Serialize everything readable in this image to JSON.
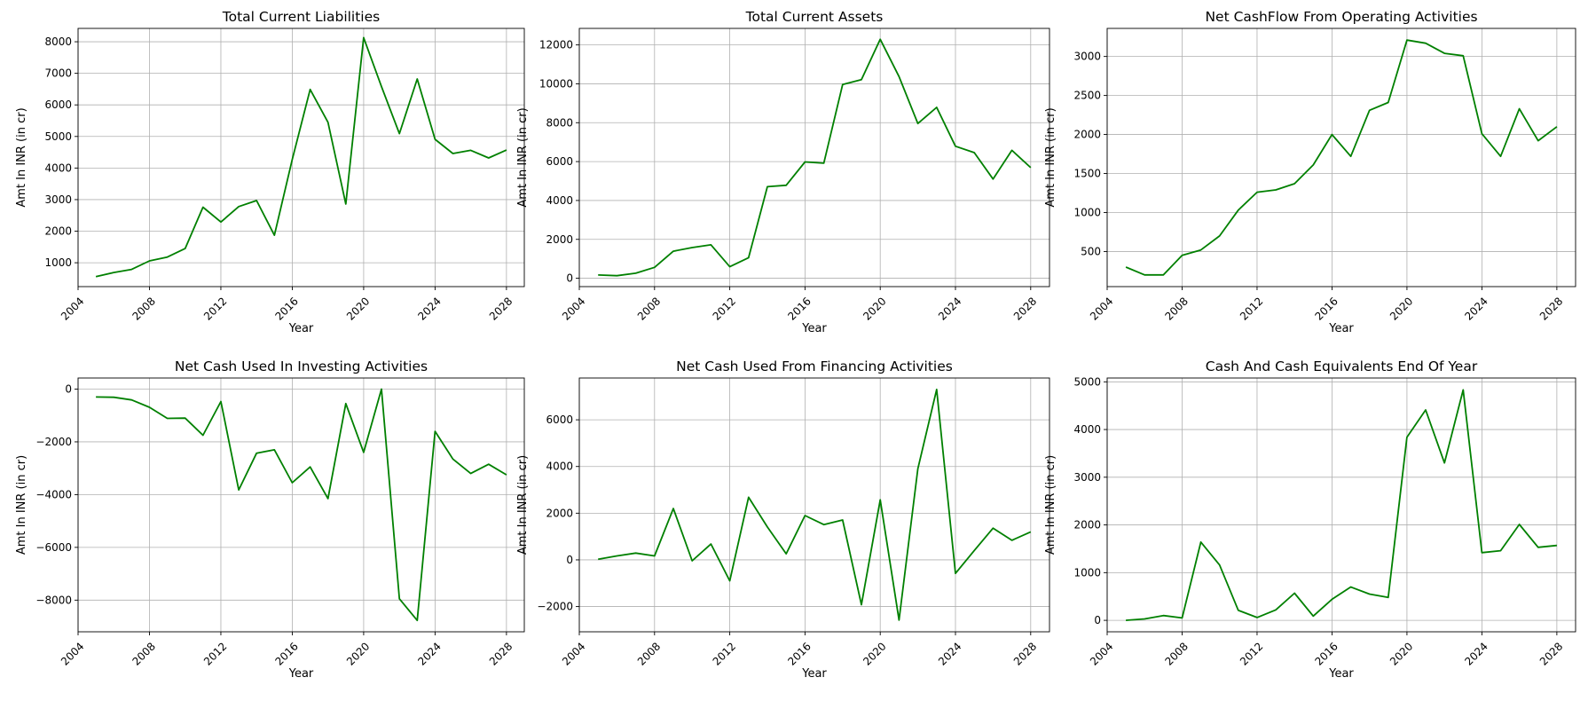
{
  "chart_data": [
    {
      "type": "line",
      "title": "Total Current Liabilities",
      "xlabel": "Year",
      "ylabel": "Amt In INR (in cr)",
      "xlim": [
        2004,
        2029
      ],
      "ylim": [
        244,
        8423
      ],
      "grid": true,
      "color": "#008000",
      "xticks": [
        2004,
        2008,
        2012,
        2016,
        2020,
        2024,
        2028
      ],
      "yticks": [
        1000,
        2000,
        3000,
        4000,
        5000,
        6000,
        7000,
        8000
      ],
      "x": [
        2005,
        2006,
        2007,
        2008,
        2009,
        2010,
        2011,
        2012,
        2013,
        2014,
        2015,
        2016,
        2017,
        2018,
        2019,
        2020,
        2021,
        2022,
        2023,
        2024,
        2025,
        2026,
        2027,
        2028
      ],
      "y": [
        560,
        690,
        790,
        1060,
        1180,
        1450,
        2760,
        2290,
        2780,
        2970,
        1870,
        4270,
        6490,
        5450,
        2860,
        8130,
        6580,
        5090,
        6820,
        4910,
        4460,
        4560,
        4320,
        4570
      ]
    },
    {
      "type": "line",
      "title": "Total Current Assets",
      "xlabel": "Year",
      "ylabel": "Amt In INR (in cr)",
      "xlim": [
        2004,
        2029
      ],
      "ylim": [
        -430,
        12850
      ],
      "grid": true,
      "color": "#008000",
      "xticks": [
        2004,
        2008,
        2012,
        2016,
        2020,
        2024,
        2028
      ],
      "yticks": [
        0,
        2000,
        4000,
        6000,
        8000,
        10000,
        12000
      ],
      "x": [
        2005,
        2006,
        2007,
        2008,
        2009,
        2010,
        2011,
        2012,
        2013,
        2014,
        2015,
        2016,
        2017,
        2018,
        2019,
        2020,
        2021,
        2022,
        2023,
        2024,
        2025,
        2026,
        2027,
        2028
      ],
      "y": [
        170,
        130,
        260,
        560,
        1390,
        1580,
        1720,
        590,
        1060,
        4710,
        4780,
        5980,
        5920,
        9960,
        10210,
        12290,
        10370,
        7960,
        8790,
        6790,
        6460,
        5100,
        6580,
        5690
      ]
    },
    {
      "type": "line",
      "title": "Net CashFlow From Operating Activities",
      "xlabel": "Year",
      "ylabel": "Amt In INR (in cr)",
      "xlim": [
        2004,
        2029
      ],
      "ylim": [
        50,
        3360
      ],
      "grid": true,
      "color": "#008000",
      "xticks": [
        2004,
        2008,
        2012,
        2016,
        2020,
        2024,
        2028
      ],
      "yticks": [
        500,
        1000,
        1500,
        2000,
        2500,
        3000
      ],
      "x": [
        2005,
        2006,
        2007,
        2008,
        2009,
        2010,
        2011,
        2012,
        2013,
        2014,
        2015,
        2016,
        2017,
        2018,
        2019,
        2020,
        2021,
        2022,
        2023,
        2024,
        2025,
        2026,
        2027,
        2028
      ],
      "y": [
        300,
        200,
        200,
        450,
        520,
        700,
        1030,
        1260,
        1290,
        1370,
        1610,
        2000,
        1720,
        2310,
        2410,
        3210,
        3170,
        3040,
        3010,
        2010,
        1720,
        2330,
        1920,
        2100
      ]
    },
    {
      "type": "line",
      "title": "Net Cash Used In Investing Activities",
      "xlabel": "Year",
      "ylabel": "Amt In INR (in cr)",
      "xlim": [
        2004,
        2029
      ],
      "ylim": [
        -9200,
        420
      ],
      "grid": true,
      "color": "#008000",
      "xticks": [
        2004,
        2008,
        2012,
        2016,
        2020,
        2024,
        2028
      ],
      "yticks": [
        -8000,
        -6000,
        -4000,
        -2000,
        0
      ],
      "x": [
        2005,
        2006,
        2007,
        2008,
        2009,
        2010,
        2011,
        2012,
        2013,
        2014,
        2015,
        2016,
        2017,
        2018,
        2019,
        2020,
        2021,
        2022,
        2023,
        2024,
        2025,
        2026,
        2027,
        2028
      ],
      "y": [
        -300,
        -310,
        -410,
        -690,
        -1110,
        -1100,
        -1750,
        -470,
        -3820,
        -2430,
        -2300,
        -3550,
        -2950,
        -4150,
        -550,
        -2400,
        0,
        -7950,
        -8770,
        -1600,
        -2650,
        -3200,
        -2850,
        -3250
      ]
    },
    {
      "type": "line",
      "title": "Net Cash Used From Financing Activities",
      "xlabel": "Year",
      "ylabel": "Amt In INR (in cr)",
      "xlim": [
        2004,
        2029
      ],
      "ylim": [
        -3080,
        7790
      ],
      "grid": true,
      "color": "#008000",
      "xticks": [
        2004,
        2008,
        2012,
        2016,
        2020,
        2024,
        2028
      ],
      "yticks": [
        -2000,
        0,
        2000,
        4000,
        6000
      ],
      "x": [
        2005,
        2006,
        2007,
        2008,
        2009,
        2010,
        2011,
        2012,
        2013,
        2014,
        2015,
        2016,
        2017,
        2018,
        2019,
        2020,
        2021,
        2022,
        2023,
        2024,
        2025,
        2026,
        2027,
        2028
      ],
      "y": [
        30,
        170,
        290,
        170,
        2200,
        -40,
        680,
        -900,
        2680,
        1410,
        260,
        1900,
        1510,
        1710,
        -1920,
        2570,
        -2580,
        3900,
        7300,
        -580,
        400,
        1360,
        840,
        1200
      ]
    },
    {
      "type": "line",
      "title": "Cash And Cash Equivalents End Of Year",
      "xlabel": "Year",
      "ylabel": "Amt In INR (in cr)",
      "xlim": [
        2004,
        2029
      ],
      "ylim": [
        -240,
        5080
      ],
      "grid": true,
      "color": "#008000",
      "xticks": [
        2004,
        2008,
        2012,
        2016,
        2020,
        2024,
        2028
      ],
      "yticks": [
        0,
        1000,
        2000,
        3000,
        4000,
        5000
      ],
      "x": [
        2005,
        2006,
        2007,
        2008,
        2009,
        2010,
        2011,
        2012,
        2013,
        2014,
        2015,
        2016,
        2017,
        2018,
        2019,
        2020,
        2021,
        2022,
        2023,
        2024,
        2025,
        2026,
        2027,
        2028
      ],
      "y": [
        0,
        30,
        100,
        50,
        1640,
        1160,
        210,
        60,
        220,
        570,
        90,
        440,
        700,
        550,
        480,
        3840,
        4410,
        3300,
        4830,
        1420,
        1460,
        2010,
        1530,
        1570
      ]
    }
  ]
}
